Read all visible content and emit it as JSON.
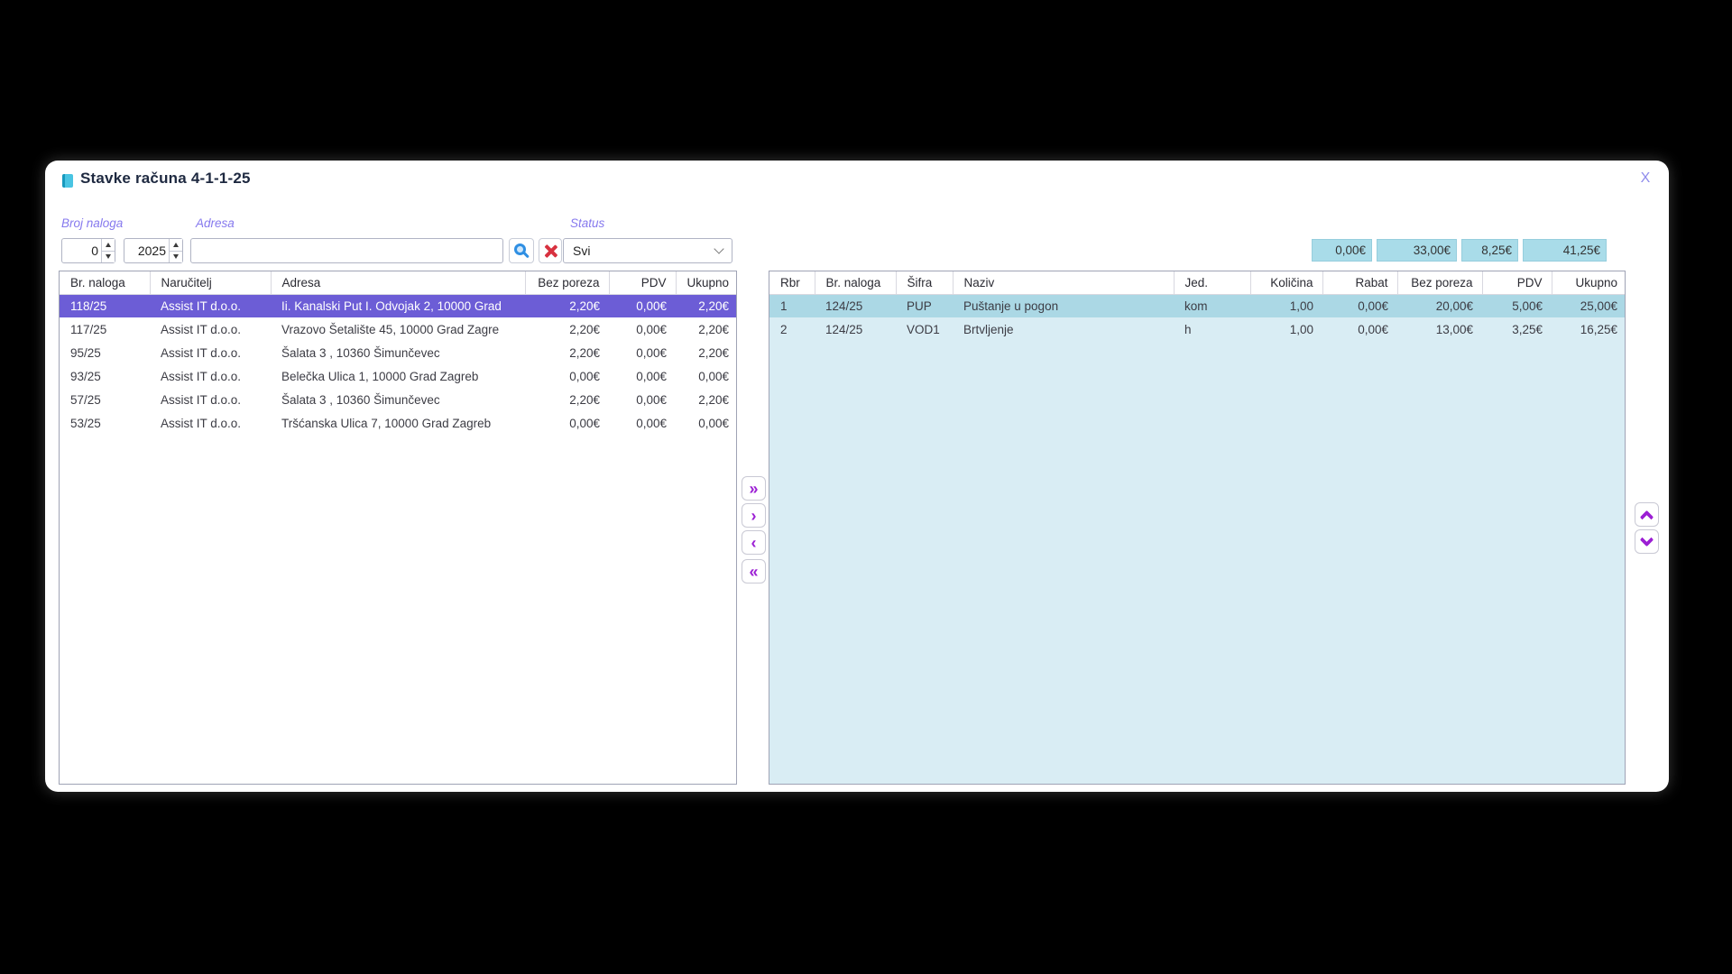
{
  "window": {
    "title": "Stavke računa 4-1-1-25",
    "close": "X"
  },
  "filters": {
    "broj_naloga": {
      "label": "Broj naloga",
      "number": "0",
      "year": "2025"
    },
    "adresa": {
      "label": "Adresa",
      "value": "",
      "placeholder": ""
    },
    "status": {
      "label": "Status",
      "value": "Svi"
    }
  },
  "icons": {
    "title": "document",
    "search": "magnifier",
    "clear": "red-cross",
    "status_dropdown": "chevron-down",
    "reorder_up": "chevron-up",
    "reorder_down": "chevron-down"
  },
  "transfer": {
    "all_right": "»",
    "right": "›",
    "left": "‹",
    "all_left": "«"
  },
  "totals": {
    "values": [
      "0,00€",
      "33,00€",
      "8,25€",
      "41,25€"
    ]
  },
  "orders_table": {
    "columns": [
      "Br. naloga",
      "Naručitelj",
      "Adresa",
      "Bez poreza",
      "PDV",
      "Ukupno"
    ],
    "selected_row": 0,
    "rows": [
      [
        "118/25",
        "Assist IT d.o.o.",
        "Ii. Kanalski Put I. Odvojak 2, 10000 Grad",
        "2,20€",
        "0,00€",
        "2,20€"
      ],
      [
        "117/25",
        "Assist IT d.o.o.",
        "Vrazovo Šetalište 45, 10000 Grad Zagre",
        "2,20€",
        "0,00€",
        "2,20€"
      ],
      [
        "95/25",
        "Assist IT d.o.o.",
        "Šalata 3 , 10360 Šimunčevec",
        "2,20€",
        "0,00€",
        "2,20€"
      ],
      [
        "93/25",
        "Assist IT d.o.o.",
        "Belečka Ulica 1, 10000 Grad Zagreb",
        "0,00€",
        "0,00€",
        "0,00€"
      ],
      [
        "57/25",
        "Assist IT d.o.o.",
        "Šalata 3 , 10360 Šimunčevec",
        "2,20€",
        "0,00€",
        "2,20€"
      ],
      [
        "53/25",
        "Assist IT d.o.o.",
        "Tršćanska Ulica 7, 10000 Grad Zagreb",
        "0,00€",
        "0,00€",
        "0,00€"
      ]
    ]
  },
  "items_table": {
    "columns": [
      "Rbr",
      "Br. naloga",
      "Šifra",
      "Naziv",
      "Jed.",
      "Količina",
      "Rabat",
      "Bez poreza",
      "PDV",
      "Ukupno"
    ],
    "selected_row": 0,
    "rows": [
      [
        "1",
        "124/25",
        "PUP",
        "Puštanje u pogon",
        "kom",
        "1,00",
        "0,00€",
        "20,00€",
        "5,00€",
        "25,00€"
      ],
      [
        "2",
        "124/25",
        "VOD1",
        "Brtvljenje",
        "h",
        "1,00",
        "0,00€",
        "13,00€",
        "3,25€",
        "16,25€"
      ]
    ]
  },
  "colors": {
    "selected_order_row": "#6c5dd6",
    "items_body": "#d9edf4",
    "selected_item_row": "#abd8e5",
    "accent_purple": "#9c1fd4",
    "totals_bg": "#a9dce9",
    "label_purple": "#8679ee"
  }
}
